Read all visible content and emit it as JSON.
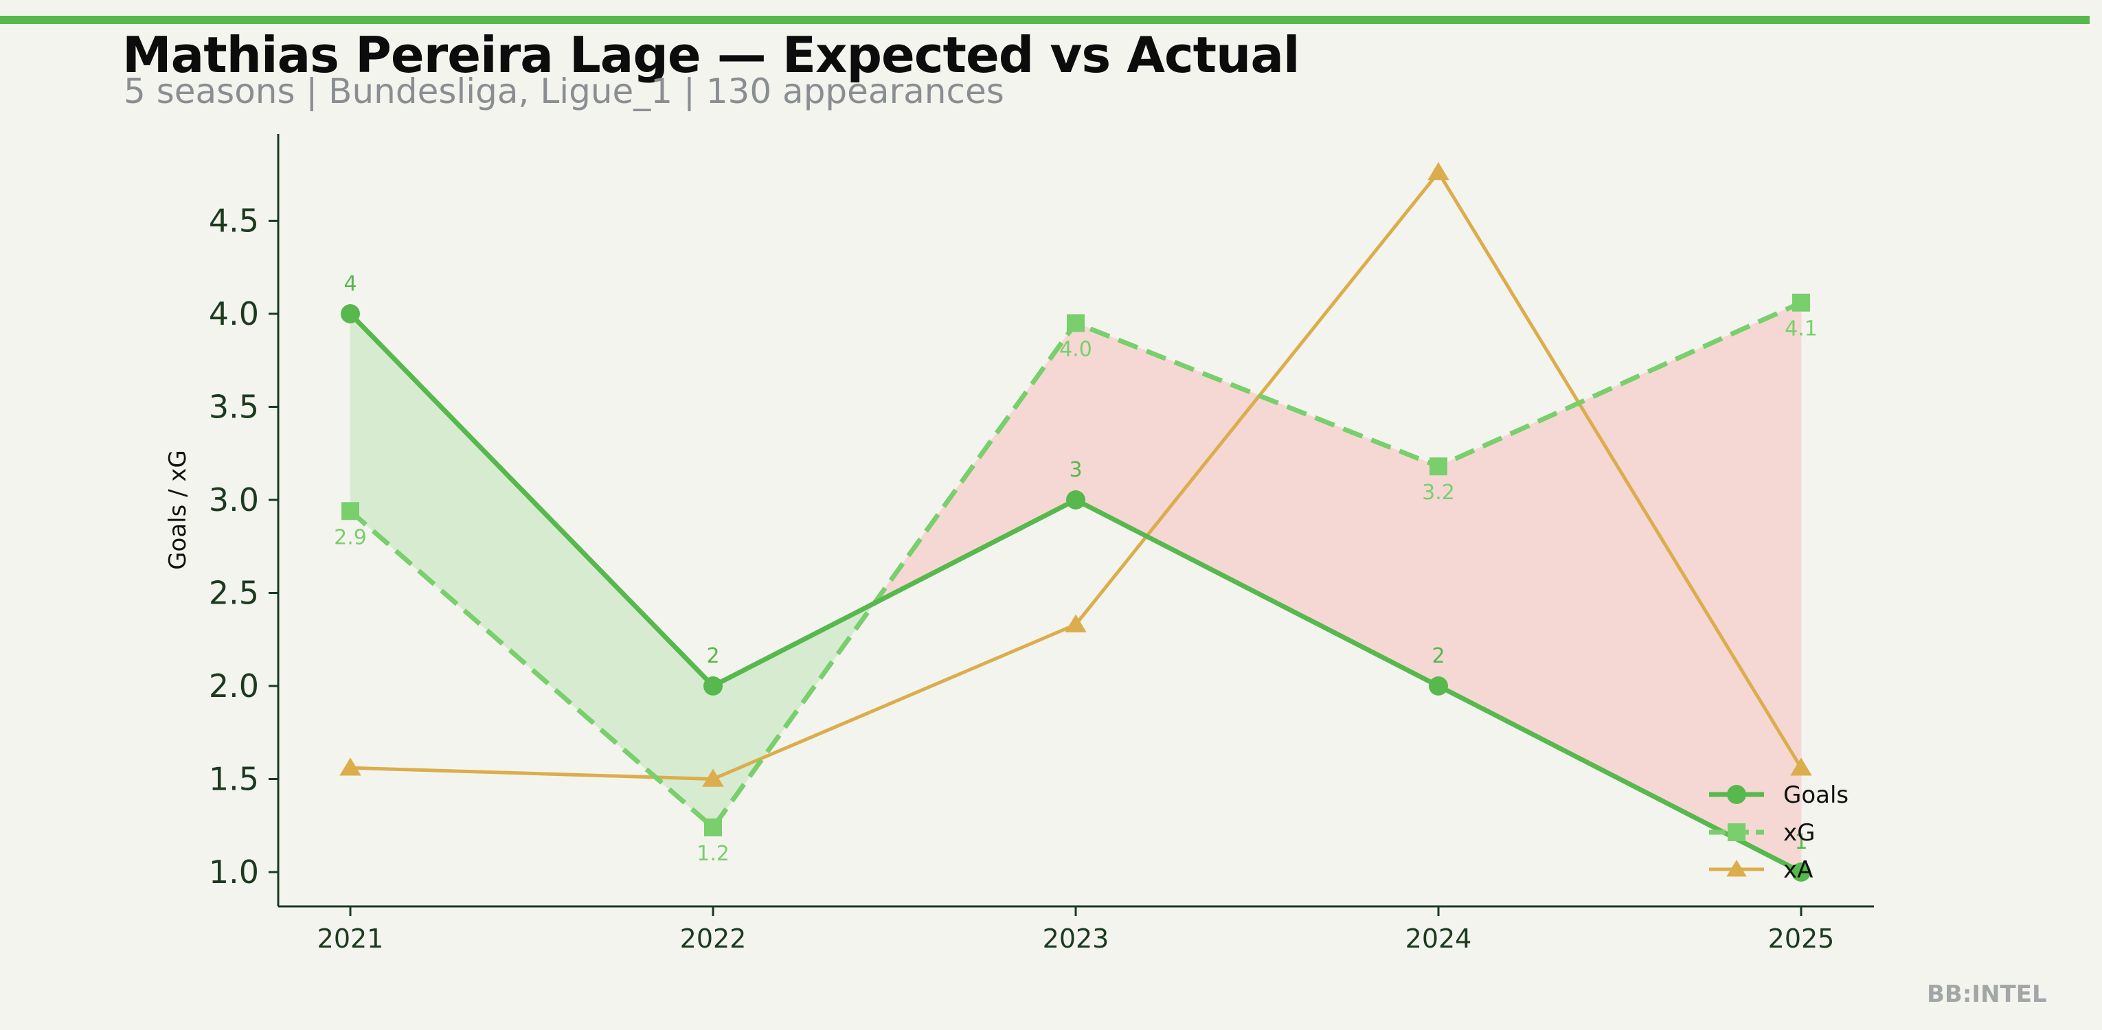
{
  "header": {
    "title": "Mathias Pereira Lage — Expected vs Actual",
    "subtitle": "5 seasons | Bundesliga, Ligue_1 | 130 appearances"
  },
  "watermark": "BB:INTEL",
  "colors": {
    "accent_bar": "#57b84d",
    "goals": "#57b84d",
    "xg": "#78cf6c",
    "xa": "#dcad4c",
    "overperform_fill": "#d7ebd1",
    "underperform_fill": "#f5d8d4",
    "axis": "#1b3a1e"
  },
  "chart_data": {
    "type": "line",
    "x": [
      "2021",
      "2022",
      "2023",
      "2024",
      "2025"
    ],
    "series": [
      {
        "name": "Goals",
        "values": [
          4,
          2,
          3,
          2,
          1
        ],
        "labels": [
          "4",
          "2",
          "3",
          "2",
          "1"
        ],
        "marker": "circle",
        "style": "solid"
      },
      {
        "name": "xG",
        "values": [
          2.94,
          1.24,
          3.95,
          3.18,
          4.06
        ],
        "labels": [
          "2.9",
          "1.2",
          "4.0",
          "3.2",
          "4.1"
        ],
        "marker": "square",
        "style": "dashed"
      },
      {
        "name": "xA",
        "values": [
          1.56,
          1.5,
          2.33,
          4.76,
          1.56
        ],
        "marker": "triangle",
        "style": "solid"
      }
    ],
    "title": "Mathias Pereira Lage — Expected vs Actual",
    "subtitle": "5 seasons | Bundesliga, Ligue_1 | 130 appearances",
    "xlabel": "",
    "ylabel": "Goals / xG",
    "yticks": [
      "1.0",
      "1.5",
      "2.0",
      "2.5",
      "3.0",
      "3.5",
      "4.0",
      "4.5"
    ],
    "ylim": [
      0.82,
      4.98
    ],
    "grid": false,
    "legend": "bottom-right"
  }
}
